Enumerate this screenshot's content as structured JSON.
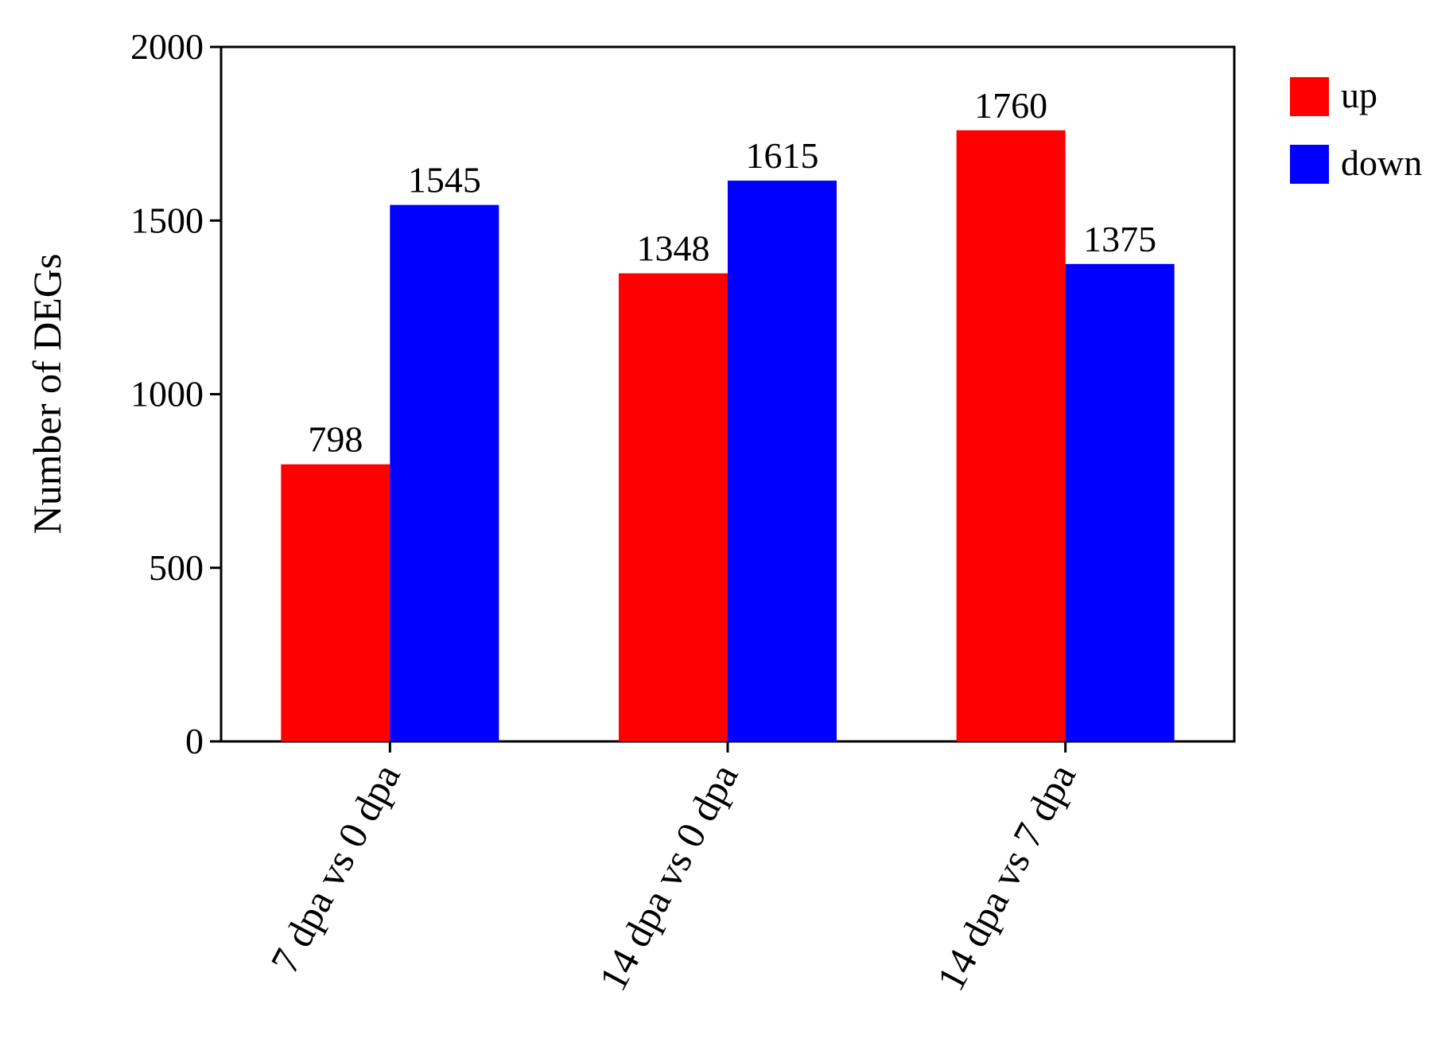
{
  "chart_data": {
    "type": "bar",
    "y_label": "Number of DEGs",
    "categories": [
      "7 dpa vs 0 dpa",
      "14 dpa vs 0 dpa",
      "14 dpa vs 7 dpa"
    ],
    "series": [
      {
        "name": "up",
        "color": "#ff0000",
        "values": [
          798,
          1348,
          1760
        ]
      },
      {
        "name": "down",
        "color": "#0000ff",
        "values": [
          1545,
          1615,
          1375
        ]
      }
    ],
    "ylim": [
      0,
      2000
    ],
    "yticks": [
      0,
      500,
      1000,
      1500,
      2000
    ],
    "legend": "right",
    "grid": false
  }
}
